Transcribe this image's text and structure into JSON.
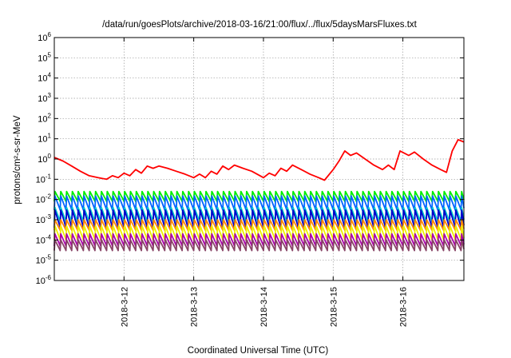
{
  "chart_data": {
    "type": "line",
    "title": "/data/run/goesPlots/archive/2018-03-16/21:00/flux/../flux/5daysMarsFluxes.txt",
    "xlabel": "Coordinated Universal Time (UTC)",
    "ylabel": "protons/cm²-s-sr-MeV",
    "yscale": "log",
    "ylim": [
      1e-06,
      1000000.0
    ],
    "y_ticks": [
      {
        "base": "10",
        "exp": "6",
        "value": 1000000.0
      },
      {
        "base": "10",
        "exp": "5",
        "value": 100000.0
      },
      {
        "base": "10",
        "exp": "4",
        "value": 10000.0
      },
      {
        "base": "10",
        "exp": "3",
        "value": 1000.0
      },
      {
        "base": "10",
        "exp": "2",
        "value": 100.0
      },
      {
        "base": "10",
        "exp": "1",
        "value": 10.0
      },
      {
        "base": "10",
        "exp": "0",
        "value": 1.0
      },
      {
        "base": "10",
        "exp": "-1",
        "value": 0.1
      },
      {
        "base": "10",
        "exp": "-2",
        "value": 0.01
      },
      {
        "base": "10",
        "exp": "-3",
        "value": 0.001
      },
      {
        "base": "10",
        "exp": "-4",
        "value": 0.0001
      },
      {
        "base": "10",
        "exp": "-5",
        "value": 1e-05
      },
      {
        "base": "10",
        "exp": "-6",
        "value": 1e-06
      }
    ],
    "xlim": [
      "2018-03-11 00:00",
      "2018-03-16 21:00"
    ],
    "x_tick_labels": [
      "2018-3-12",
      "2018-3-13",
      "2018-3-14",
      "2018-3-15",
      "2018-3-16"
    ],
    "x_tick_values": [
      "2018-03-12",
      "2018-03-13",
      "2018-03-14",
      "2018-03-15",
      "2018-03-16"
    ],
    "grid": true,
    "legend": "none",
    "series": [
      {
        "color": "#ff0000",
        "values": [
          [
            "2018-03-11 00:00",
            1.2
          ],
          [
            "2018-03-11 03:00",
            0.8
          ],
          [
            "2018-03-11 06:00",
            0.45
          ],
          [
            "2018-03-11 09:00",
            0.25
          ],
          [
            "2018-03-11 12:00",
            0.15
          ],
          [
            "2018-03-11 15:00",
            0.12
          ],
          [
            "2018-03-11 18:00",
            0.1
          ],
          [
            "2018-03-11 20:00",
            0.15
          ],
          [
            "2018-03-11 22:00",
            0.12
          ],
          [
            "2018-03-12 00:00",
            0.2
          ],
          [
            "2018-03-12 02:00",
            0.15
          ],
          [
            "2018-03-12 04:00",
            0.3
          ],
          [
            "2018-03-12 06:00",
            0.2
          ],
          [
            "2018-03-12 08:00",
            0.45
          ],
          [
            "2018-03-12 10:00",
            0.35
          ],
          [
            "2018-03-12 12:00",
            0.45
          ],
          [
            "2018-03-12 15:00",
            0.35
          ],
          [
            "2018-03-12 18:00",
            0.25
          ],
          [
            "2018-03-12 21:00",
            0.18
          ],
          [
            "2018-03-13 00:00",
            0.12
          ],
          [
            "2018-03-13 02:00",
            0.18
          ],
          [
            "2018-03-13 04:00",
            0.12
          ],
          [
            "2018-03-13 06:00",
            0.25
          ],
          [
            "2018-03-13 08:00",
            0.18
          ],
          [
            "2018-03-13 10:00",
            0.45
          ],
          [
            "2018-03-13 12:00",
            0.3
          ],
          [
            "2018-03-13 14:00",
            0.5
          ],
          [
            "2018-03-13 17:00",
            0.35
          ],
          [
            "2018-03-13 20:00",
            0.25
          ],
          [
            "2018-03-14 00:00",
            0.12
          ],
          [
            "2018-03-14 02:00",
            0.2
          ],
          [
            "2018-03-14 04:00",
            0.15
          ],
          [
            "2018-03-14 06:00",
            0.35
          ],
          [
            "2018-03-14 08:00",
            0.25
          ],
          [
            "2018-03-14 10:00",
            0.5
          ],
          [
            "2018-03-14 13:00",
            0.3
          ],
          [
            "2018-03-14 16:00",
            0.18
          ],
          [
            "2018-03-14 19:00",
            0.12
          ],
          [
            "2018-03-14 21:00",
            0.09
          ],
          [
            "2018-03-15 00:00",
            0.3
          ],
          [
            "2018-03-15 02:00",
            0.8
          ],
          [
            "2018-03-15 04:00",
            2.5
          ],
          [
            "2018-03-15 06:00",
            1.5
          ],
          [
            "2018-03-15 08:00",
            2.0
          ],
          [
            "2018-03-15 11:00",
            1.0
          ],
          [
            "2018-03-15 14:00",
            0.5
          ],
          [
            "2018-03-15 17:00",
            0.3
          ],
          [
            "2018-03-15 19:00",
            0.5
          ],
          [
            "2018-03-15 21:00",
            0.3
          ],
          [
            "2018-03-15 23:00",
            2.5
          ],
          [
            "2018-03-16 02:00",
            1.5
          ],
          [
            "2018-03-16 04:00",
            2.2
          ],
          [
            "2018-03-16 07:00",
            1.0
          ],
          [
            "2018-03-16 10:00",
            0.5
          ],
          [
            "2018-03-16 13:00",
            0.3
          ],
          [
            "2018-03-16 15:00",
            0.22
          ],
          [
            "2018-03-16 17:00",
            2.5
          ],
          [
            "2018-03-16 19:00",
            9.0
          ],
          [
            "2018-03-16 21:00",
            7.0
          ]
        ]
      },
      {
        "color": "#00ee00",
        "min": 0.008,
        "max": 0.025
      },
      {
        "color": "#0066ff",
        "min": 0.003,
        "max": 0.015
      },
      {
        "color": "#00cccc",
        "min": 0.0008,
        "max": 0.004
      },
      {
        "color": "#0000cc",
        "min": 0.0004,
        "max": 0.003
      },
      {
        "color": "#ff8800",
        "min": 0.0003,
        "max": 0.001
      },
      {
        "color": "#eeee00",
        "min": 0.0001,
        "max": 0.0005
      },
      {
        "color": "#aa00aa",
        "min": 5e-05,
        "max": 0.0002
      },
      {
        "color": "#884466",
        "min": 3e-05,
        "max": 0.0001
      }
    ]
  }
}
